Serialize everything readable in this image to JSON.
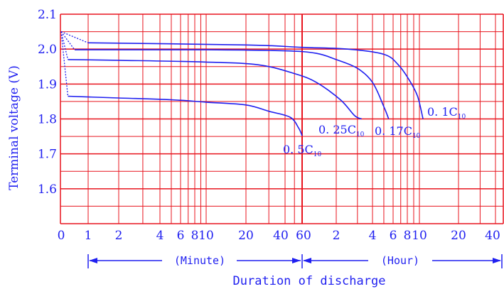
{
  "chart_data": {
    "type": "line",
    "ylabel": "Terminal voltage (V)",
    "xlabel": "Duration of discharge",
    "ylim": [
      1.5,
      2.1
    ],
    "y_ticks": [
      "2.1",
      "2.0",
      "1.9",
      "1.8",
      "1.7",
      "1.6"
    ],
    "y_tick_values": [
      2.1,
      2.0,
      1.9,
      1.8,
      1.7,
      1.6
    ],
    "x_scale": "log (minutes, then hours)",
    "x_tick_labels": [
      "0",
      "1",
      "2",
      "4",
      "6",
      "8",
      "10",
      "20",
      "40",
      "60",
      "2",
      "4",
      "6",
      "8",
      "10",
      "20",
      "40"
    ],
    "x_tick_minutes": [
      0,
      1,
      2,
      4,
      6,
      8,
      10,
      20,
      40,
      60,
      120,
      240,
      360,
      480,
      600,
      1200,
      2400
    ],
    "minute_unit_label": "(Minute)",
    "hour_unit_label": "(Hour)",
    "grid": true,
    "colors": {
      "grid": "#e8141e",
      "ink": "#1f1ff0"
    },
    "series": [
      {
        "name": "0.5C",
        "sub": "10",
        "minutes": [
          0,
          0.25,
          2,
          5,
          10,
          20,
          30,
          45,
          55,
          60
        ],
        "voltage": [
          2.05,
          1.865,
          1.86,
          1.855,
          1.848,
          1.84,
          1.822,
          1.805,
          1.775,
          1.752
        ]
      },
      {
        "name": "0.25C",
        "sub": "10",
        "minutes": [
          0,
          0.25,
          2,
          10,
          25,
          50,
          80,
          130,
          170,
          195
        ],
        "voltage": [
          2.05,
          1.97,
          1.968,
          1.963,
          1.955,
          1.93,
          1.905,
          1.855,
          1.81,
          1.8
        ]
      },
      {
        "name": "0.17C",
        "sub": "10",
        "minutes": [
          0,
          0.5,
          10,
          40,
          80,
          120,
          180,
          240,
          300,
          330
        ],
        "voltage": [
          2.05,
          1.998,
          1.998,
          1.995,
          1.988,
          1.97,
          1.945,
          1.905,
          1.835,
          1.8
        ]
      },
      {
        "name": "0.1C",
        "sub": "10",
        "minutes": [
          0,
          1,
          20,
          60,
          150,
          300,
          400,
          500,
          580,
          640
        ],
        "voltage": [
          2.05,
          2.018,
          2.012,
          2.005,
          2.0,
          1.985,
          1.955,
          1.91,
          1.865,
          1.8
        ]
      }
    ]
  }
}
